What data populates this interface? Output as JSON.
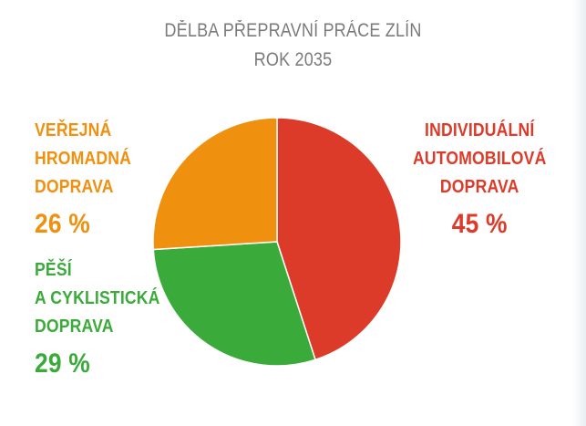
{
  "chart_data": {
    "type": "pie",
    "title": "DĚLBA PŘEPRAVNÍ PRÁCE ZLÍN",
    "subtitle": "ROK 2035",
    "slices": [
      {
        "label_lines": [
          "INDIVIDUÁLNÍ",
          "AUTOMOBILOVÁ",
          "DOPRAVA"
        ],
        "value": 45,
        "value_label": "45 %",
        "color": "#dd3b2a"
      },
      {
        "label_lines": [
          "PĚŠÍ",
          "A CYKLISTICKÁ",
          "DOPRAVA"
        ],
        "value": 29,
        "value_label": "29 %",
        "color": "#3aaa3a"
      },
      {
        "label_lines": [
          "VEŘEJNÁ",
          "HROMADNÁ",
          "DOPRAVA"
        ],
        "value": 26,
        "value_label": "26 %",
        "color": "#f0900f"
      }
    ],
    "start_angle_deg": 0,
    "direction": "clockwise"
  }
}
